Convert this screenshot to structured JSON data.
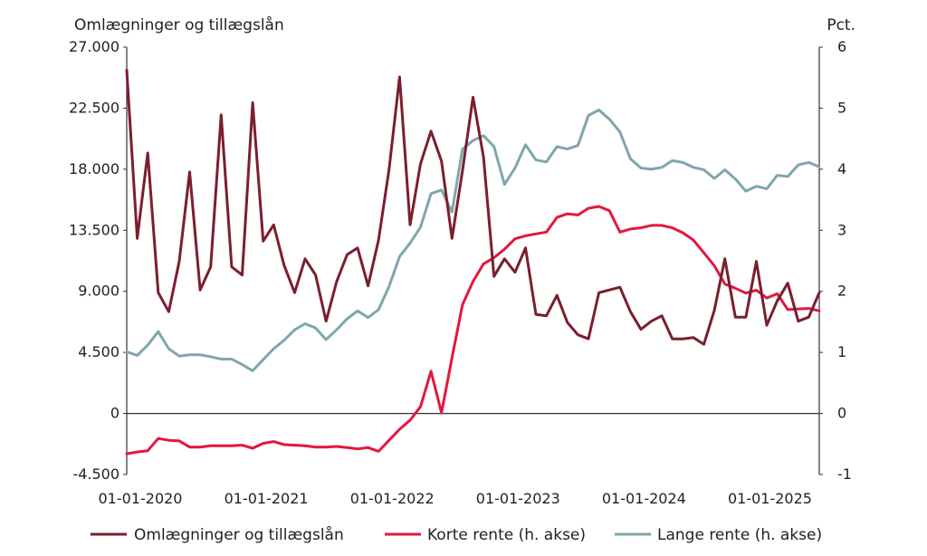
{
  "chart_data": {
    "type": "line",
    "left_axis_title": "Omlægninger og tillægslån",
    "right_axis_title": "Pct.",
    "left_ylim": [
      -4500,
      27000
    ],
    "right_ylim": [
      -1,
      6
    ],
    "left_ticks": [
      -4500,
      0,
      4500,
      9000,
      13500,
      18000,
      22500,
      27000
    ],
    "left_tick_labels": [
      "-4.500",
      "0",
      "4.500",
      "9.000",
      "13.500",
      "18.000",
      "22.500",
      "27.000"
    ],
    "right_ticks": [
      -1,
      0,
      1,
      2,
      3,
      4,
      5,
      6
    ],
    "right_tick_labels": [
      "-1",
      "0",
      "1",
      "2",
      "3",
      "4",
      "5",
      "6"
    ],
    "x_range": [
      0,
      66
    ],
    "x_ticks": [
      0,
      12,
      24,
      36,
      48,
      60
    ],
    "x_tick_labels": [
      "01-01-2020",
      "01-01-2021",
      "01-01-2022",
      "01-01-2023",
      "01-01-2024",
      "01-01-2025"
    ],
    "series": [
      {
        "name": "Omlægninger og tillægslån",
        "axis": "left",
        "color": "#7b1e2e",
        "values": [
          25300,
          12900,
          19200,
          8900,
          7500,
          11200,
          17800,
          9100,
          10800,
          22000,
          10800,
          10200,
          22900,
          12700,
          13900,
          10900,
          8900,
          11400,
          10200,
          6800,
          9700,
          11700,
          12200,
          9400,
          12800,
          18000,
          24800,
          13900,
          18400,
          20800,
          18600,
          12900,
          17900,
          23300,
          18900,
          10100,
          11400,
          10400,
          12200,
          7300,
          7200,
          8700,
          6700,
          5800,
          5500,
          8900,
          9100,
          9300,
          7500,
          6200,
          6800,
          7200,
          5500,
          5500,
          5600,
          5100,
          7600,
          11400,
          7100,
          7100,
          11200,
          6500,
          8300,
          9600,
          6800,
          7100,
          8900
        ]
      },
      {
        "name": "Korte rente (h. akse)",
        "axis": "right",
        "color": "#e3173f",
        "values": [
          -0.66,
          -0.63,
          -0.61,
          -0.41,
          -0.44,
          -0.45,
          -0.55,
          -0.55,
          -0.53,
          -0.53,
          -0.53,
          -0.52,
          -0.57,
          -0.49,
          -0.46,
          -0.51,
          -0.52,
          -0.53,
          -0.55,
          -0.55,
          -0.54,
          -0.56,
          -0.58,
          -0.56,
          -0.62,
          -0.44,
          -0.26,
          -0.11,
          0.11,
          0.69,
          0.01,
          0.91,
          1.78,
          2.16,
          2.45,
          2.55,
          2.69,
          2.86,
          2.91,
          2.94,
          2.97,
          3.21,
          3.27,
          3.25,
          3.36,
          3.39,
          3.32,
          2.97,
          3.02,
          3.04,
          3.08,
          3.08,
          3.04,
          2.96,
          2.84,
          2.63,
          2.42,
          2.12,
          2.05,
          1.97,
          2.02,
          1.89,
          1.96,
          1.7,
          1.71,
          1.72,
          1.68
        ]
      },
      {
        "name": "Lange rente (h. akse)",
        "axis": "right",
        "color": "#7fa7ab",
        "values": [
          1.01,
          0.95,
          1.12,
          1.34,
          1.06,
          0.94,
          0.96,
          0.96,
          0.93,
          0.89,
          0.89,
          0.8,
          0.7,
          0.88,
          1.06,
          1.2,
          1.37,
          1.47,
          1.4,
          1.21,
          1.37,
          1.55,
          1.68,
          1.57,
          1.7,
          2.08,
          2.57,
          2.79,
          3.05,
          3.6,
          3.66,
          3.3,
          4.33,
          4.47,
          4.55,
          4.37,
          3.75,
          4.02,
          4.4,
          4.15,
          4.12,
          4.37,
          4.33,
          4.39,
          4.88,
          4.97,
          4.82,
          4.61,
          4.17,
          4.02,
          4.0,
          4.03,
          4.14,
          4.11,
          4.03,
          3.99,
          3.85,
          3.99,
          3.84,
          3.64,
          3.72,
          3.68,
          3.9,
          3.88,
          4.07,
          4.11,
          4.04
        ]
      }
    ],
    "legend": [
      {
        "label": "Omlægninger og tillægslån",
        "color": "#7b1e2e"
      },
      {
        "label": "Korte rente (h. akse)",
        "color": "#e3173f"
      },
      {
        "label": "Lange rente (h. akse)",
        "color": "#7fa7ab"
      }
    ],
    "legend_position": "bottom"
  }
}
